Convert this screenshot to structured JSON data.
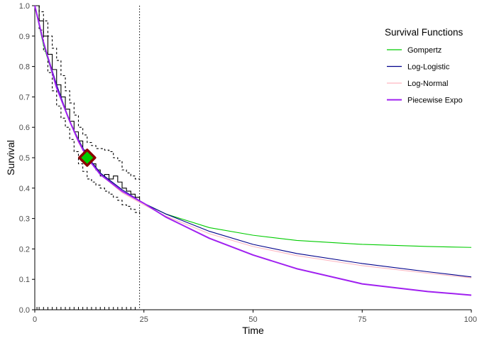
{
  "chart_data": {
    "type": "line",
    "xlabel": "Time",
    "ylabel": "Survival",
    "xlim": [
      0,
      100
    ],
    "ylim": [
      0,
      1
    ],
    "x_ticks": [
      0,
      25,
      50,
      75,
      100
    ],
    "y_ticks": [
      0.0,
      0.1,
      0.2,
      0.3,
      0.4,
      0.5,
      0.6,
      0.7,
      0.8,
      0.9,
      1.0
    ],
    "x_tick_labels": [
      "0",
      "25",
      "50",
      "75",
      "100"
    ],
    "y_tick_labels": [
      "0.0",
      "0.1",
      "0.2",
      "0.3",
      "0.4",
      "0.5",
      "0.6",
      "0.7",
      "0.8",
      "0.9",
      "1.0"
    ],
    "grid": false,
    "legend": {
      "title": "Survival Functions",
      "position": "top-right"
    },
    "vertical_reference_line": {
      "x": 24,
      "style": "dotted"
    },
    "median_marker": {
      "x": 12,
      "y": 0.5,
      "fill": "#00cc00",
      "stroke": "#8b0000"
    },
    "series": [
      {
        "name": "Gompertz",
        "color": "#00cc00",
        "x": [
          0,
          2,
          5,
          8,
          10,
          12,
          15,
          20,
          25,
          30,
          40,
          50,
          60,
          75,
          90,
          100
        ],
        "y": [
          1.0,
          0.87,
          0.73,
          0.62,
          0.56,
          0.505,
          0.45,
          0.39,
          0.35,
          0.315,
          0.27,
          0.245,
          0.228,
          0.215,
          0.208,
          0.205
        ]
      },
      {
        "name": "Log-Logistic",
        "color": "#00008b",
        "x": [
          0,
          2,
          5,
          8,
          10,
          12,
          15,
          20,
          25,
          30,
          40,
          50,
          60,
          75,
          90,
          100
        ],
        "y": [
          1.0,
          0.88,
          0.74,
          0.62,
          0.56,
          0.505,
          0.45,
          0.395,
          0.35,
          0.315,
          0.258,
          0.215,
          0.185,
          0.152,
          0.125,
          0.108
        ]
      },
      {
        "name": "Log-Normal",
        "color": "#ffb6c1",
        "x": [
          0,
          2,
          5,
          8,
          10,
          12,
          15,
          20,
          25,
          30,
          40,
          50,
          60,
          75,
          90,
          100
        ],
        "y": [
          1.0,
          0.88,
          0.73,
          0.62,
          0.55,
          0.5,
          0.445,
          0.385,
          0.345,
          0.308,
          0.25,
          0.208,
          0.178,
          0.145,
          0.12,
          0.105
        ]
      },
      {
        "name": "Piecewise Expo",
        "color": "#a020f0",
        "x": [
          0,
          2,
          5,
          8,
          10,
          12,
          15,
          20,
          25,
          30,
          40,
          50,
          60,
          75,
          90,
          100
        ],
        "y": [
          1.0,
          0.88,
          0.73,
          0.62,
          0.555,
          0.5,
          0.445,
          0.39,
          0.35,
          0.305,
          0.235,
          0.18,
          0.135,
          0.085,
          0.06,
          0.048
        ]
      }
    ],
    "kaplan_meier": {
      "x": [
        0,
        1,
        2,
        3,
        4,
        5,
        6,
        7,
        8,
        9,
        10,
        11,
        12,
        13,
        14,
        15,
        16,
        17,
        18,
        19,
        20,
        21,
        22,
        23,
        24
      ],
      "y": [
        1.0,
        0.95,
        0.9,
        0.84,
        0.79,
        0.74,
        0.7,
        0.66,
        0.62,
        0.585,
        0.555,
        0.525,
        0.5,
        0.48,
        0.46,
        0.44,
        0.445,
        0.43,
        0.44,
        0.42,
        0.4,
        0.39,
        0.38,
        0.37,
        0.36
      ]
    },
    "kaplan_meier_ci_upper": {
      "x": [
        0,
        1,
        2,
        3,
        4,
        5,
        6,
        7,
        8,
        9,
        10,
        11,
        12,
        13,
        14,
        15,
        16,
        17,
        18,
        19,
        20,
        21,
        22,
        23,
        24
      ],
      "y": [
        1.0,
        0.98,
        0.95,
        0.9,
        0.86,
        0.82,
        0.77,
        0.72,
        0.68,
        0.64,
        0.6,
        0.575,
        0.55,
        0.54,
        0.53,
        0.53,
        0.525,
        0.52,
        0.5,
        0.49,
        0.46,
        0.45,
        0.44,
        0.43,
        0.42
      ]
    },
    "kaplan_meier_ci_lower": {
      "x": [
        0,
        1,
        2,
        3,
        4,
        5,
        6,
        7,
        8,
        9,
        10,
        11,
        12,
        13,
        14,
        15,
        16,
        17,
        18,
        19,
        20,
        21,
        22,
        23,
        24
      ],
      "y": [
        1.0,
        0.92,
        0.85,
        0.78,
        0.72,
        0.67,
        0.63,
        0.6,
        0.56,
        0.52,
        0.48,
        0.455,
        0.43,
        0.42,
        0.41,
        0.4,
        0.39,
        0.38,
        0.37,
        0.36,
        0.345,
        0.34,
        0.33,
        0.32,
        0.31
      ]
    },
    "rug_times": [
      0.5,
      1,
      2,
      3,
      4,
      5,
      6,
      7,
      8,
      9,
      10,
      11,
      12,
      13,
      14,
      15,
      16,
      17,
      18,
      19,
      20,
      21,
      22,
      23
    ]
  }
}
